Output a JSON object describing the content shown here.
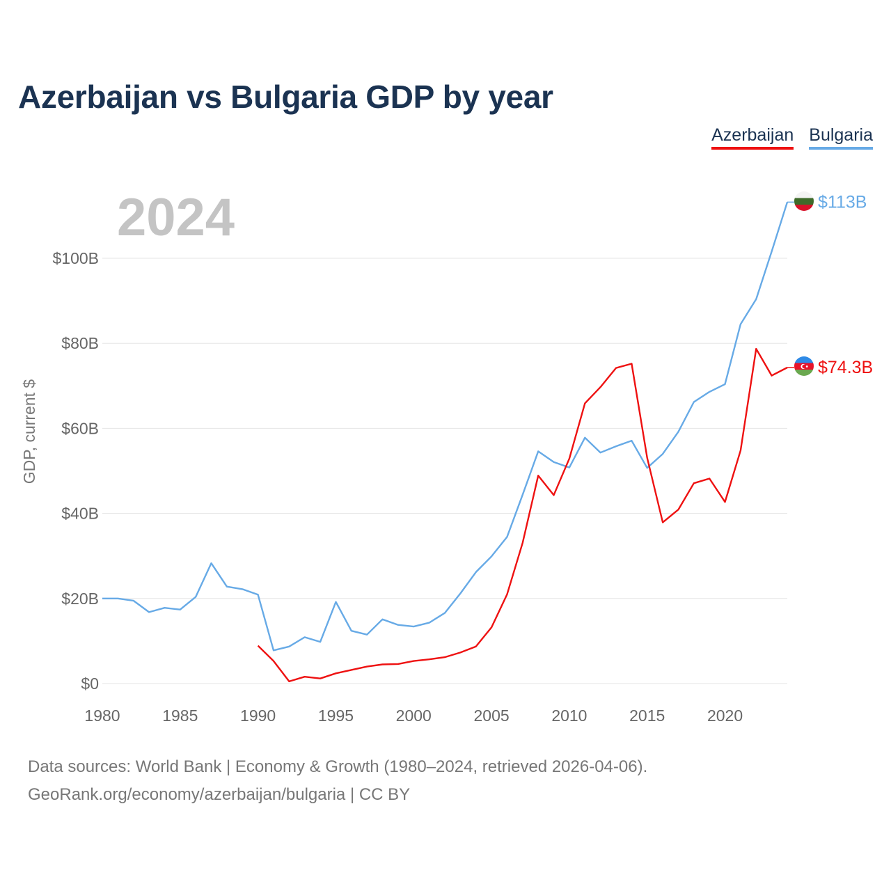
{
  "title": "Azerbaijan vs Bulgaria GDP by year",
  "legend": [
    {
      "label": "Azerbaijan",
      "color": "#ee1111"
    },
    {
      "label": "Bulgaria",
      "color": "#67aae6"
    }
  ],
  "footer": {
    "line1": "Data sources: World Bank | Economy & Growth (1980–2024, retrieved 2026-04-06).",
    "line2": "GeoRank.org/economy/azerbaijan/bulgaria | CC BY"
  },
  "chart_data": {
    "type": "line",
    "title": "Azerbaijan vs Bulgaria GDP by year",
    "xlabel": "",
    "ylabel": "GDP, current $",
    "year_label": "2024",
    "xlim": [
      1980,
      2024
    ],
    "ylim": [
      0,
      113
    ],
    "grid": true,
    "legend_position": "top-right",
    "x_ticks": [
      1980,
      1985,
      1990,
      1995,
      2000,
      2005,
      2010,
      2015,
      2020
    ],
    "y_ticks": [
      {
        "value": 0,
        "label": "$0"
      },
      {
        "value": 20,
        "label": "$20B"
      },
      {
        "value": 40,
        "label": "$40B"
      },
      {
        "value": 60,
        "label": "$60B"
      },
      {
        "value": 80,
        "label": "$80B"
      },
      {
        "value": 100,
        "label": "$100B"
      }
    ],
    "series": [
      {
        "name": "Bulgaria",
        "color": "#67aae6",
        "end_label": "$113B",
        "flag": "bulgaria-flag-icon",
        "x": [
          1980,
          1981,
          1982,
          1983,
          1984,
          1985,
          1986,
          1987,
          1988,
          1989,
          1990,
          1991,
          1992,
          1993,
          1994,
          1995,
          1996,
          1997,
          1998,
          1999,
          2000,
          2001,
          2002,
          2003,
          2004,
          2005,
          2006,
          2007,
          2008,
          2009,
          2010,
          2011,
          2012,
          2013,
          2014,
          2015,
          2016,
          2017,
          2018,
          2019,
          2020,
          2021,
          2022,
          2023,
          2024
        ],
        "values": [
          20.0,
          20.0,
          19.5,
          16.8,
          17.8,
          17.4,
          20.4,
          28.3,
          22.8,
          22.2,
          20.9,
          7.8,
          8.7,
          10.9,
          9.8,
          19.2,
          12.4,
          11.5,
          15.1,
          13.8,
          13.4,
          14.3,
          16.6,
          21.2,
          26.2,
          29.9,
          34.5,
          44.4,
          54.6,
          52.1,
          50.8,
          57.8,
          54.3,
          55.8,
          57.1,
          50.7,
          54.0,
          59.2,
          66.2,
          68.6,
          70.4,
          84.5,
          90.4,
          101.6,
          113.2
        ]
      },
      {
        "name": "Azerbaijan",
        "color": "#ee1111",
        "end_label": "$74.3B",
        "flag": "azerbaijan-flag-icon",
        "x": [
          1990,
          1991,
          1992,
          1993,
          1994,
          1995,
          1996,
          1997,
          1998,
          1999,
          2000,
          2001,
          2002,
          2003,
          2004,
          2005,
          2006,
          2007,
          2008,
          2009,
          2010,
          2011,
          2012,
          2013,
          2014,
          2015,
          2016,
          2017,
          2018,
          2019,
          2020,
          2021,
          2022,
          2023,
          2024
        ],
        "values": [
          8.9,
          5.3,
          0.5,
          1.6,
          1.2,
          2.4,
          3.2,
          4.0,
          4.5,
          4.6,
          5.3,
          5.7,
          6.2,
          7.3,
          8.7,
          13.2,
          21.0,
          33.1,
          48.9,
          44.3,
          52.9,
          65.9,
          69.7,
          74.2,
          75.2,
          53.1,
          37.9,
          40.9,
          47.1,
          48.2,
          42.7,
          54.8,
          78.7,
          72.4,
          74.3
        ]
      }
    ]
  }
}
